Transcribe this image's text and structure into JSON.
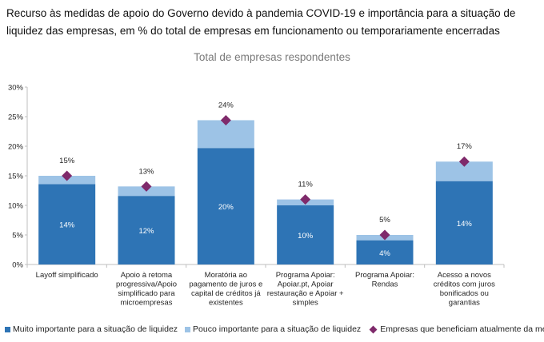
{
  "title": "Recurso às medidas de apoio do Governo devido à pandemia COVID-19 e importância para a situação de liquidez das empresas, em % do total de empresas em funcionamento ou temporariamente encerradas",
  "subtitle": "Total de empresas respondentes",
  "colors": {
    "very_important": "#2e74b5",
    "little_important": "#9dc3e6",
    "marker": "#7f2a6b",
    "axis": "#bfbfbf",
    "grid": "#e6e6e6"
  },
  "legend": [
    {
      "label": "Muito importante para a situação de liquidez",
      "shape": "square",
      "color": "#2e74b5"
    },
    {
      "label": "Pouco importante para a situação de liquidez",
      "shape": "square",
      "color": "#9dc3e6"
    },
    {
      "label": "Empresas que beneficiam atualmente da medida",
      "shape": "diamond",
      "color": "#7f2a6b"
    }
  ],
  "chart_data": {
    "type": "bar",
    "stacked": true,
    "categories": [
      [
        "Layoff simplificado"
      ],
      [
        "Apoio à retoma",
        "progressiva/Apoio",
        "simplificado para",
        "microempresas"
      ],
      [
        "Moratória ao",
        "pagamento de juros e",
        "capital de créditos já",
        "existentes"
      ],
      [
        "Programa Apoiar:",
        "Apoiar.pt, Apoiar",
        "restauração e Apoiar +",
        "simples"
      ],
      [
        "Programa Apoiar:",
        "Rendas"
      ],
      [
        "Acesso a novos",
        "créditos com juros",
        "bonificados ou",
        "garantias"
      ]
    ],
    "series": [
      {
        "name": "Muito importante para a situação de liquidez",
        "values": [
          13.6,
          11.6,
          19.7,
          10.0,
          4.1,
          14.1
        ],
        "labels": [
          "14%",
          "12%",
          "20%",
          "10%",
          "4%",
          "14%"
        ]
      },
      {
        "name": "Pouco importante para a situação de liquidez",
        "values": [
          1.4,
          1.6,
          4.7,
          1.0,
          0.9,
          3.3
        ]
      },
      {
        "name": "Empresas que beneficiam atualmente da medida",
        "type": "marker",
        "values": [
          15,
          13.2,
          24.4,
          11,
          5,
          17.4
        ],
        "labels": [
          "15%",
          "13%",
          "24%",
          "11%",
          "5%",
          "17%"
        ]
      }
    ],
    "ylim": [
      0,
      30
    ],
    "yticks": [
      "0%",
      "5%",
      "10%",
      "15%",
      "20%",
      "25%",
      "30%"
    ],
    "grid": false
  }
}
